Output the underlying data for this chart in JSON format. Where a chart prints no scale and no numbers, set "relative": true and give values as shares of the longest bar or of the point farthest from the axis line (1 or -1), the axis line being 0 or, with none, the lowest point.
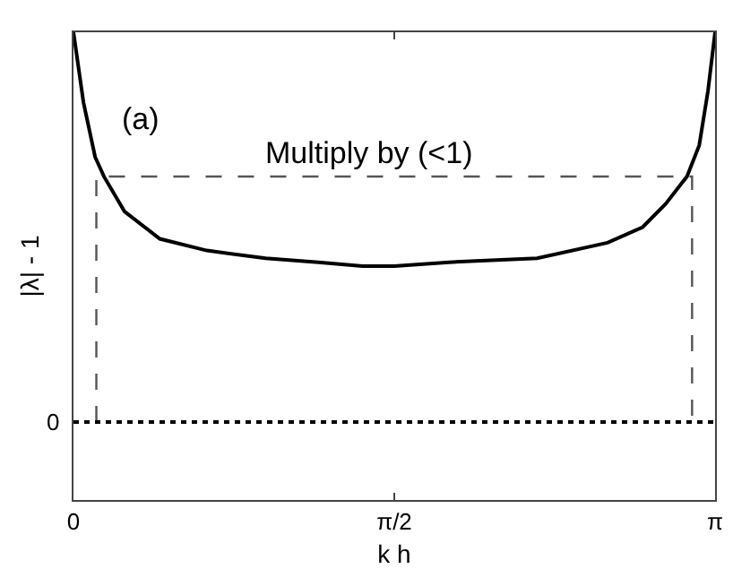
{
  "chart_data": {
    "type": "line",
    "relative": true,
    "xlabel": "k h",
    "ylabel": "|λ| - 1",
    "xlim": [
      0,
      3.1416
    ],
    "xticks": [
      0,
      {
        "value": 1.5708,
        "label": "π/2"
      },
      {
        "value": 3.1416,
        "label": "π"
      }
    ],
    "series": [
      {
        "color": "#000000",
        "line_style": "solid",
        "x": [
          0,
          0.049,
          0.106,
          0.149,
          0.25,
          0.423,
          0.653,
          0.941,
          1.2,
          1.415,
          1.571,
          1.838,
          2.27,
          2.615,
          2.787,
          2.9,
          3.004,
          3.064,
          3.107,
          3.1416
        ],
        "values": [
          1,
          0.82,
          0.68,
          0.63,
          0.54,
          0.47,
          0.44,
          0.42,
          0.41,
          0.4,
          0.4,
          0.41,
          0.42,
          0.46,
          0.5,
          0.56,
          0.63,
          0.71,
          0.85,
          1
        ]
      },
      {
        "color": "#555555",
        "line_style": "dashed",
        "x": [
          0.112,
          0.112,
          3.029,
          3.029
        ],
        "values": [
          0,
          0.63,
          0.63,
          0
        ]
      }
    ],
    "ref_lines": [
      {
        "axis": "y",
        "value": 0,
        "label": "0",
        "color": "#000000",
        "line_style": "dotted"
      }
    ],
    "annotations": [
      "(a)",
      "Multiply by (<1)"
    ],
    "grid": false,
    "marker": "none"
  }
}
